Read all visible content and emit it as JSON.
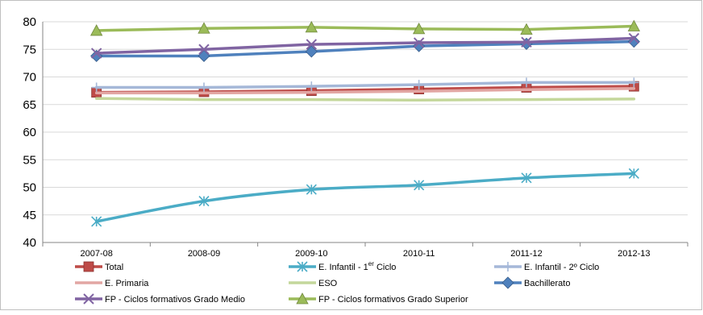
{
  "chart_data": {
    "type": "line",
    "title": "",
    "xlabel": "",
    "ylabel": "",
    "categories": [
      "2007-08",
      "2008-09",
      "2009-10",
      "2010-11",
      "2011-12",
      "2012-13"
    ],
    "ylim": [
      40,
      80
    ],
    "yticks": [
      "40",
      "45",
      "50",
      "55",
      "60",
      "65",
      "70",
      "75",
      "80"
    ],
    "grid": true,
    "legend_position": "bottom",
    "series": [
      {
        "name": "Total",
        "color": "#be4b48",
        "marker": "square",
        "smooth": false,
        "values": [
          67.2,
          67.3,
          67.5,
          67.8,
          68.1,
          68.3
        ]
      },
      {
        "name": "E. Infantil - 1",
        "name_sup": "er",
        "name_suffix": " Ciclo",
        "color": "#4bacc6",
        "marker": "asterisk",
        "smooth": true,
        "values": [
          43.8,
          47.5,
          49.6,
          50.4,
          51.7,
          52.5
        ]
      },
      {
        "name": "E. Infantil - 2º Ciclo",
        "color": "#a5b8d8",
        "marker": "plus",
        "smooth": false,
        "values": [
          68.1,
          68.1,
          68.3,
          68.6,
          69.0,
          69.0
        ]
      },
      {
        "name": "E. Primaria",
        "color": "#e2a6a3",
        "marker": "none",
        "smooth": false,
        "values": [
          67.1,
          67.1,
          67.2,
          67.4,
          67.7,
          67.9
        ]
      },
      {
        "name": "ESO",
        "color": "#c4d79b",
        "marker": "none",
        "smooth": false,
        "values": [
          66.1,
          65.9,
          65.9,
          65.8,
          65.9,
          66.0
        ]
      },
      {
        "name": "Bachillerato",
        "color": "#4f81bd",
        "marker": "diamond",
        "smooth": false,
        "values": [
          73.8,
          73.8,
          74.6,
          75.6,
          76.0,
          76.4
        ]
      },
      {
        "name": "FP - Ciclos formativos Grado Medio",
        "color": "#8064a2",
        "marker": "x",
        "smooth": false,
        "values": [
          74.3,
          75.0,
          75.9,
          76.2,
          76.3,
          77.0
        ]
      },
      {
        "name": "FP - Ciclos formativos Grado Superior",
        "color": "#9bbb59",
        "marker": "triangle",
        "smooth": false,
        "values": [
          78.4,
          78.8,
          79.0,
          78.7,
          78.6,
          79.2
        ]
      }
    ]
  }
}
